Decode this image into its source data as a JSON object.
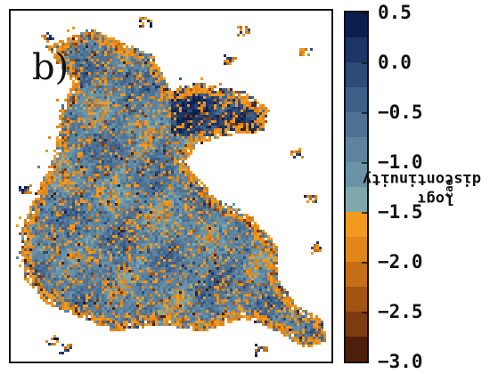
{
  "panel_label": "b)",
  "chart_data": {
    "type": "heatmap",
    "colorbar": {
      "label": "logτ_cae of discontinuity",
      "label_main": "logτ",
      "label_sub": "cae",
      "label_rest": " of discontinuity",
      "ticks": [
        "0.5",
        "0.0",
        "−0.5",
        "−1.0",
        "−1.5",
        "−2.0",
        "−2.5",
        "−3.0"
      ],
      "tick_values": [
        0.5,
        0.0,
        -0.5,
        -1.0,
        -1.5,
        -2.0,
        -2.5,
        -3.0
      ],
      "range": [
        -3.0,
        0.5
      ],
      "levels": 14,
      "colors": [
        "#0b1f4e",
        "#1c3466",
        "#2d4a78",
        "#3e5f88",
        "#4e7294",
        "#5d839e",
        "#6b93a6",
        "#7ea8ab",
        "#f39a1e",
        "#e0861a",
        "#c66e16",
        "#a35412",
        "#7d3b10",
        "#4e1e0c"
      ],
      "blue_colors": [
        "#0b1f4e",
        "#1c3466",
        "#2d4a78",
        "#3e5f88",
        "#4e7294",
        "#5d839e",
        "#6b93a6",
        "#7ea8ab"
      ],
      "orange_colors": [
        "#f39a1e",
        "#e0861a",
        "#c66e16",
        "#a35412",
        "#7d3b10",
        "#4e1e0c"
      ]
    }
  }
}
